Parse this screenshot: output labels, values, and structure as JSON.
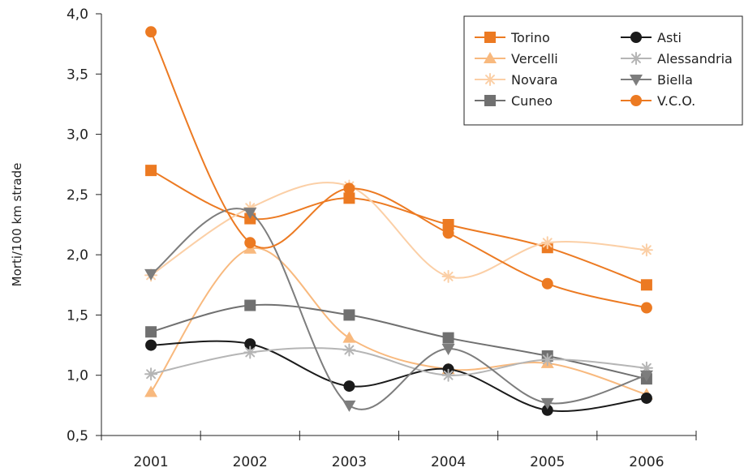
{
  "chart_data": {
    "type": "line",
    "title": "",
    "xlabel": "",
    "ylabel": "Morti/100 km strade",
    "categories": [
      "2001",
      "2002",
      "2003",
      "2004",
      "2005",
      "2006"
    ],
    "ylim": [
      0.5,
      4.0
    ],
    "yticks": [
      "4,0",
      "3,5",
      "3,0",
      "2,5",
      "2,0",
      "1,5",
      "1,0",
      "0,5"
    ],
    "legend_position": "top-right",
    "grid": false,
    "series": [
      {
        "name": "Torino",
        "marker": "square",
        "color": "#ec7a22",
        "values": [
          2.7,
          2.3,
          2.47,
          2.25,
          2.06,
          1.75
        ]
      },
      {
        "name": "Vercelli",
        "marker": "triangle",
        "color": "#f8b97e",
        "values": [
          0.86,
          2.05,
          1.31,
          1.05,
          1.1,
          0.84
        ]
      },
      {
        "name": "Novara",
        "marker": "asterisk",
        "color": "#fbcfa6",
        "values": [
          1.83,
          2.39,
          2.57,
          1.82,
          2.1,
          2.04
        ]
      },
      {
        "name": "Cuneo",
        "marker": "square",
        "color": "#707070",
        "values": [
          1.36,
          1.58,
          1.5,
          1.31,
          1.16,
          0.97
        ]
      },
      {
        "name": "Asti",
        "marker": "circle",
        "color": "#1a1a1a",
        "values": [
          1.25,
          1.26,
          0.91,
          1.05,
          0.71,
          0.81
        ]
      },
      {
        "name": "Alessandria",
        "marker": "asterisk",
        "color": "#b5b5b5",
        "values": [
          1.01,
          1.19,
          1.21,
          1.0,
          1.13,
          1.06
        ]
      },
      {
        "name": "Biella",
        "marker": "triangle-down",
        "color": "#7d7d7d",
        "values": [
          1.84,
          2.35,
          0.75,
          1.22,
          0.77,
          1.0
        ]
      },
      {
        "name": "V.C.O.",
        "marker": "circle",
        "color": "#ec7a22",
        "values": [
          3.85,
          2.1,
          2.55,
          2.18,
          1.76,
          1.56
        ]
      }
    ]
  }
}
